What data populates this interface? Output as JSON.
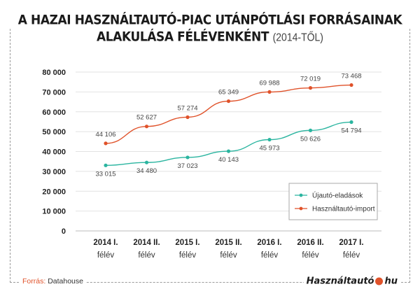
{
  "title": {
    "line1": "A HAZAI HASZNÁLTAUTÓ-PIAC UTÁNPÓTLÁSI FORRÁSAINAK",
    "line2": "ALAKULÁSA FÉLÉVENKÉNT",
    "line2_suffix": "(2014-TŐL)"
  },
  "source": {
    "label": "Forrás:",
    "value": "Datahouse"
  },
  "logo": {
    "text": "Használtautó",
    "tld": "hu",
    "dot_color": "#e0522a"
  },
  "chart_data": {
    "type": "line",
    "categories": [
      [
        "2014 I.",
        "félév"
      ],
      [
        "2014 II.",
        "félév"
      ],
      [
        "2015 I.",
        "félév"
      ],
      [
        "2015 II.",
        "félév"
      ],
      [
        "2016 I.",
        "félév"
      ],
      [
        "2016 II.",
        "félév"
      ],
      [
        "2017 I.",
        "félév"
      ]
    ],
    "series": [
      {
        "name": "Újautó-eladások",
        "color": "#2bb5a0",
        "values": [
          33015,
          34480,
          37023,
          40143,
          45973,
          50626,
          54794
        ],
        "labels": [
          "33 015",
          "34 480",
          "37 023",
          "40 143",
          "45 973",
          "50 626",
          "54 794"
        ]
      },
      {
        "name": "Használtautó-import",
        "color": "#e0522a",
        "values": [
          44106,
          52627,
          57274,
          65349,
          69988,
          72019,
          73468
        ],
        "labels": [
          "44 106",
          "52 627",
          "57 274",
          "65 349",
          "69 988",
          "72 019",
          "73 468"
        ]
      }
    ],
    "yticks": [
      "0",
      "10 000",
      "20 000",
      "30 000",
      "40 000",
      "50 000",
      "60 000",
      "70 000",
      "80 000"
    ],
    "ylim": [
      0,
      80000
    ],
    "grid": true,
    "legend": "bottom-right"
  }
}
